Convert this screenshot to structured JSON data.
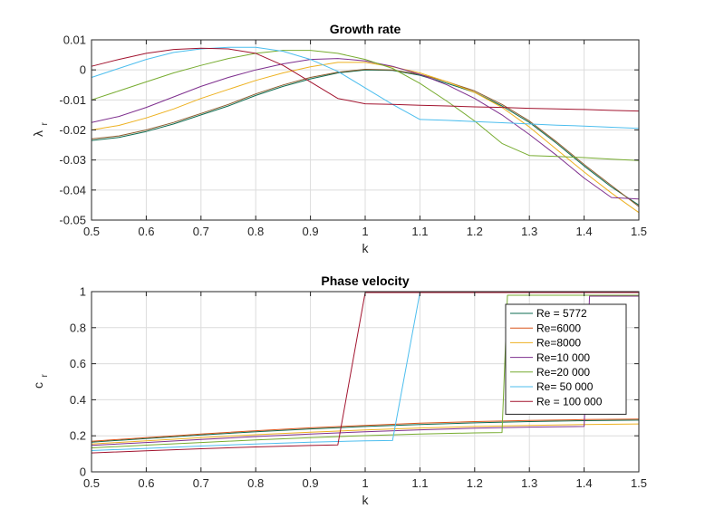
{
  "chart_data": [
    {
      "type": "line",
      "title": "Growth rate",
      "xlabel": "k",
      "ylabel": "λ",
      "ylabel_sub": "r",
      "xlim": [
        0.5,
        1.5
      ],
      "ylim": [
        -0.05,
        0.01
      ],
      "grid": true,
      "xticks": [
        "0.5",
        "0.6",
        "0.7",
        "0.8",
        "0.9",
        "1",
        "1.1",
        "1.2",
        "1.3",
        "1.4",
        "1.5"
      ],
      "yticks": [
        "0.01",
        "0",
        "-0.01",
        "-0.02",
        "-0.03",
        "-0.04",
        "-0.05"
      ],
      "xtick_values": [
        0.5,
        0.6,
        0.7,
        0.8,
        0.9,
        1.0,
        1.1,
        1.2,
        1.3,
        1.4,
        1.5
      ],
      "ytick_values": [
        0.01,
        0,
        -0.01,
        -0.02,
        -0.03,
        -0.04,
        -0.05
      ],
      "series": [
        {
          "color": "#0e6b50",
          "x": [
            0.5,
            0.55,
            0.6,
            0.65,
            0.7,
            0.75,
            0.8,
            0.85,
            0.9,
            0.95,
            1.0,
            1.05,
            1.1,
            1.15,
            1.2,
            1.25,
            1.3,
            1.35,
            1.4,
            1.45,
            1.5
          ],
          "y": [
            -0.0235,
            -0.0225,
            -0.0205,
            -0.018,
            -0.015,
            -0.012,
            -0.0085,
            -0.0055,
            -0.003,
            -0.001,
            0.0,
            -0.0002,
            -0.0018,
            -0.0045,
            -0.0075,
            -0.012,
            -0.0175,
            -0.0245,
            -0.032,
            -0.039,
            -0.045
          ]
        },
        {
          "color": "#8b5a2b",
          "x": [
            0.5,
            0.55,
            0.6,
            0.65,
            0.7,
            0.75,
            0.8,
            0.85,
            0.9,
            0.95,
            1.0,
            1.05,
            1.1,
            1.15,
            1.2,
            1.25,
            1.3,
            1.35,
            1.4,
            1.45,
            1.5
          ],
          "y": [
            -0.023,
            -0.022,
            -0.02,
            -0.0175,
            -0.0145,
            -0.0115,
            -0.008,
            -0.005,
            -0.0025,
            -0.0008,
            0.0002,
            0.0,
            -0.0015,
            -0.004,
            -0.007,
            -0.0115,
            -0.017,
            -0.024,
            -0.0315,
            -0.0385,
            -0.0455
          ]
        },
        {
          "color": "#edb120",
          "x": [
            0.5,
            0.55,
            0.6,
            0.65,
            0.7,
            0.75,
            0.8,
            0.85,
            0.9,
            0.95,
            1.0,
            1.05,
            1.1,
            1.15,
            1.2,
            1.25,
            1.3,
            1.35,
            1.4,
            1.45,
            1.5
          ],
          "y": [
            -0.02,
            -0.0185,
            -0.016,
            -0.013,
            -0.0095,
            -0.0065,
            -0.0035,
            -0.001,
            0.001,
            0.0025,
            0.0025,
            0.001,
            -0.001,
            -0.004,
            -0.0075,
            -0.0125,
            -0.019,
            -0.0265,
            -0.034,
            -0.041,
            -0.0475
          ]
        },
        {
          "color": "#7e2f8e",
          "x": [
            0.5,
            0.55,
            0.6,
            0.65,
            0.7,
            0.75,
            0.8,
            0.85,
            0.9,
            0.95,
            1.0,
            1.05,
            1.1,
            1.15,
            1.2,
            1.25,
            1.3,
            1.35,
            1.4,
            1.45,
            1.5
          ],
          "y": [
            -0.0175,
            -0.0155,
            -0.0125,
            -0.009,
            -0.0055,
            -0.0025,
            0.0,
            0.002,
            0.0035,
            0.0038,
            0.003,
            0.0012,
            -0.0015,
            -0.005,
            -0.0095,
            -0.015,
            -0.0215,
            -0.0285,
            -0.036,
            -0.0425,
            -0.043
          ]
        },
        {
          "color": "#77ac30",
          "x": [
            0.5,
            0.55,
            0.6,
            0.65,
            0.7,
            0.75,
            0.8,
            0.85,
            0.9,
            0.95,
            1.0,
            1.05,
            1.1,
            1.15,
            1.2,
            1.25,
            1.3,
            1.35,
            1.4,
            1.45,
            1.5
          ],
          "y": [
            -0.01,
            -0.007,
            -0.004,
            -0.001,
            0.0015,
            0.0038,
            0.0055,
            0.0065,
            0.0065,
            0.0055,
            0.0035,
            0.0005,
            -0.0045,
            -0.0105,
            -0.017,
            -0.0245,
            -0.0285,
            -0.0288,
            -0.0292,
            -0.0297,
            -0.0302
          ]
        },
        {
          "color": "#4dbeee",
          "x": [
            0.5,
            0.55,
            0.6,
            0.65,
            0.7,
            0.75,
            0.8,
            0.85,
            0.9,
            0.95,
            1.0,
            1.05,
            1.1,
            1.15,
            1.2,
            1.25,
            1.3,
            1.35,
            1.4,
            1.45,
            1.5
          ],
          "y": [
            -0.0025,
            0.0005,
            0.0035,
            0.0058,
            0.007,
            0.0075,
            0.0075,
            0.0062,
            0.0035,
            -0.0005,
            -0.006,
            -0.0115,
            -0.0165,
            -0.0168,
            -0.0172,
            -0.0176,
            -0.018,
            -0.0184,
            -0.0187,
            -0.0191,
            -0.0195
          ]
        },
        {
          "color": "#a2142f",
          "x": [
            0.5,
            0.55,
            0.6,
            0.65,
            0.7,
            0.75,
            0.8,
            0.85,
            0.9,
            0.95,
            1.0,
            1.05,
            1.1,
            1.15,
            1.2,
            1.25,
            1.3,
            1.35,
            1.4,
            1.45,
            1.5
          ],
          "y": [
            0.0012,
            0.0035,
            0.0055,
            0.0068,
            0.0072,
            0.007,
            0.0055,
            0.0015,
            -0.004,
            -0.0095,
            -0.0113,
            -0.0115,
            -0.0118,
            -0.012,
            -0.0123,
            -0.0125,
            -0.0128,
            -0.013,
            -0.0132,
            -0.0135,
            -0.0137
          ]
        }
      ]
    },
    {
      "type": "line",
      "title": "Phase velocity",
      "xlabel": "k",
      "ylabel": "c",
      "ylabel_sub": "r",
      "xlim": [
        0.5,
        1.5
      ],
      "ylim": [
        0,
        1
      ],
      "grid": true,
      "xticks": [
        "0.5",
        "0.6",
        "0.7",
        "0.8",
        "0.9",
        "1",
        "1.1",
        "1.2",
        "1.3",
        "1.4",
        "1.5"
      ],
      "yticks": [
        "1",
        "0.8",
        "0.6",
        "0.4",
        "0.2",
        "0"
      ],
      "xtick_values": [
        0.5,
        0.6,
        0.7,
        0.8,
        0.9,
        1.0,
        1.1,
        1.2,
        1.3,
        1.4,
        1.5
      ],
      "ytick_values": [
        1,
        0.8,
        0.6,
        0.4,
        0.2,
        0
      ],
      "legend_position": "top-right",
      "series": [
        {
          "name": "Re = 5772",
          "color": "#0e6b50",
          "x": [
            0.5,
            0.6,
            0.7,
            0.8,
            0.9,
            1.0,
            1.1,
            1.2,
            1.3,
            1.4,
            1.5
          ],
          "y": [
            0.165,
            0.185,
            0.205,
            0.222,
            0.238,
            0.252,
            0.263,
            0.272,
            0.279,
            0.284,
            0.287
          ]
        },
        {
          "name": "Re=6000",
          "color": "#d95319",
          "x": [
            0.5,
            0.6,
            0.7,
            0.8,
            0.9,
            1.0,
            1.1,
            1.2,
            1.3,
            1.4,
            1.5
          ],
          "y": [
            0.17,
            0.19,
            0.21,
            0.228,
            0.244,
            0.258,
            0.27,
            0.279,
            0.285,
            0.29,
            0.293
          ]
        },
        {
          "name": "Re=8000",
          "color": "#edb120",
          "x": [
            0.5,
            0.6,
            0.7,
            0.8,
            0.9,
            1.0,
            1.1,
            1.2,
            1.3,
            1.4,
            1.5
          ],
          "y": [
            0.155,
            0.172,
            0.19,
            0.206,
            0.22,
            0.232,
            0.243,
            0.252,
            0.258,
            0.263,
            0.266
          ]
        },
        {
          "name": "Re=10 000",
          "color": "#7e2f8e",
          "x": [
            0.5,
            0.6,
            0.7,
            0.8,
            0.9,
            1.0,
            1.1,
            1.2,
            1.3,
            1.35,
            1.4,
            1.41,
            1.45,
            1.5
          ],
          "y": [
            0.147,
            0.163,
            0.18,
            0.196,
            0.21,
            0.222,
            0.233,
            0.242,
            0.248,
            0.25,
            0.252,
            0.975,
            0.975,
            0.975
          ]
        },
        {
          "name": "Re=20 000",
          "color": "#77ac30",
          "x": [
            0.5,
            0.6,
            0.7,
            0.8,
            0.9,
            1.0,
            1.1,
            1.2,
            1.25,
            1.26,
            1.3,
            1.4,
            1.5
          ],
          "y": [
            0.133,
            0.148,
            0.163,
            0.177,
            0.19,
            0.201,
            0.21,
            0.216,
            0.218,
            0.98,
            0.98,
            0.98,
            0.98
          ]
        },
        {
          "name": "Re= 50 000",
          "color": "#4dbeee",
          "x": [
            0.5,
            0.6,
            0.7,
            0.8,
            0.9,
            1.0,
            1.05,
            1.1,
            1.2,
            1.3,
            1.4,
            1.5
          ],
          "y": [
            0.118,
            0.13,
            0.143,
            0.155,
            0.165,
            0.172,
            0.174,
            0.995,
            0.995,
            0.995,
            0.995,
            0.995
          ]
        },
        {
          "name": "Re = 100 000",
          "color": "#a2142f",
          "x": [
            0.5,
            0.6,
            0.7,
            0.8,
            0.9,
            0.95,
            1.0,
            1.1,
            1.2,
            1.3,
            1.4,
            1.5
          ],
          "y": [
            0.105,
            0.117,
            0.128,
            0.138,
            0.146,
            0.149,
            0.995,
            0.995,
            0.995,
            0.995,
            0.995,
            0.995
          ]
        }
      ]
    }
  ]
}
